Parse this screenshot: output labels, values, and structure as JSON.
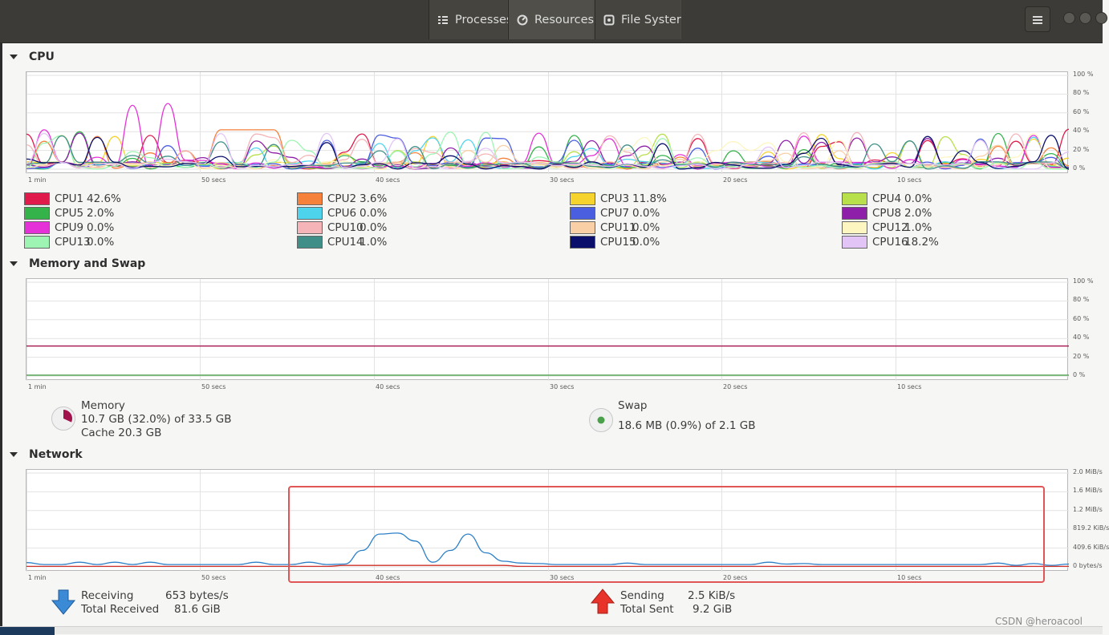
{
  "header": {
    "tabs": [
      {
        "label": "Processes",
        "icon": "list-icon"
      },
      {
        "label": "Resources",
        "icon": "gauge-icon"
      },
      {
        "label": "File Syster",
        "icon": "disk-icon"
      }
    ],
    "active_tab": "Resources"
  },
  "time_ticks": [
    "1 min",
    "50 secs",
    "40 secs",
    "30 secs",
    "20 secs",
    "10 secs"
  ],
  "cpu": {
    "title": "CPU",
    "y_ticks": [
      "100 %",
      "80 %",
      "60 %",
      "40 %",
      "20 %",
      "0 %"
    ],
    "cores": [
      {
        "name": "CPU1",
        "value": "42.6%",
        "color": "#e01b4c"
      },
      {
        "name": "CPU2",
        "value": "3.6%",
        "color": "#f5813b"
      },
      {
        "name": "CPU3",
        "value": "11.8%",
        "color": "#f6d32d"
      },
      {
        "name": "CPU4",
        "value": "0.0%",
        "color": "#b8e04a"
      },
      {
        "name": "CPU5",
        "value": "2.0%",
        "color": "#33b34a"
      },
      {
        "name": "CPU6",
        "value": "0.0%",
        "color": "#4ed3ed"
      },
      {
        "name": "CPU7",
        "value": "0.0%",
        "color": "#4a5ee0"
      },
      {
        "name": "CPU8",
        "value": "2.0%",
        "color": "#8e1fa8"
      },
      {
        "name": "CPU9",
        "value": "0.0%",
        "color": "#e531d8"
      },
      {
        "name": "CPU10",
        "value": "0.0%",
        "color": "#f5b5b8"
      },
      {
        "name": "CPU11",
        "value": "0.0%",
        "color": "#f9cfa6"
      },
      {
        "name": "CPU12",
        "value": "1.0%",
        "color": "#fdf6c0"
      },
      {
        "name": "CPU13",
        "value": "0.0%",
        "color": "#9ef5b3"
      },
      {
        "name": "CPU14",
        "value": "1.0%",
        "color": "#3f8f88"
      },
      {
        "name": "CPU15",
        "value": "0.0%",
        "color": "#0a0f6b"
      },
      {
        "name": "CPU16",
        "value": "18.2%",
        "color": "#e3c4f7"
      }
    ]
  },
  "memory": {
    "title": "Memory and Swap",
    "y_ticks": [
      "100 %",
      "80 %",
      "60 %",
      "40 %",
      "20 %",
      "0 %"
    ],
    "memory_label": "Memory",
    "memory_used": "10.7 GB (32.0%) of 33.5 GB",
    "memory_cache": "Cache 20.3 GB",
    "memory_percent": 32.0,
    "memory_color": "#a2124d",
    "swap_label": "Swap",
    "swap_used": "18.6 MB (0.9%) of 2.1 GB",
    "swap_percent": 0.9,
    "swap_color": "#4aa04a"
  },
  "network": {
    "title": "Network",
    "y_ticks": [
      "2.0 MiB/s",
      "1.6 MiB/s",
      "1.2 MiB/s",
      "819.2 KiB/s",
      "409.6 KiB/s",
      "0 bytes/s"
    ],
    "receiving_label": "Receiving",
    "receiving_value": "653 bytes/s",
    "total_received_label": "Total Received",
    "total_received_value": "81.6 GiB",
    "sending_label": "Sending",
    "sending_value": "2.5 KiB/s",
    "total_sent_label": "Total Sent",
    "total_sent_value": "9.2 GiB",
    "receive_color": "#2d80c8",
    "send_color": "#d0302a"
  },
  "watermark": "CSDN @heroacool"
}
